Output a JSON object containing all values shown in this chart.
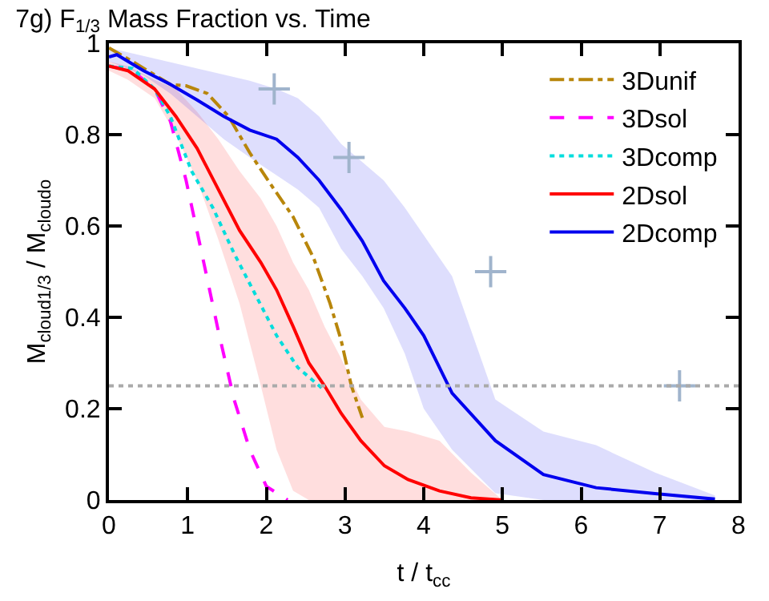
{
  "chart_data": {
    "type": "line",
    "title": "7g) F$_{1/3}$ Mass Fraction vs. Time",
    "xlabel": "t / t$_{cc}$",
    "ylabel": "M$_{cloud1/3}$ / M$_{cloudo}$",
    "xlim": [
      0,
      8
    ],
    "ylim": [
      0,
      1
    ],
    "xticks": [
      0,
      1,
      2,
      3,
      4,
      5,
      6,
      7,
      8
    ],
    "yticks": [
      0,
      0.2,
      0.4,
      0.6,
      0.8,
      1
    ],
    "legend": "top right",
    "ref_lines": [
      {
        "axis": "y",
        "value": 0.25,
        "label": null,
        "color": "#aaaaaa",
        "line_style": "dotted"
      }
    ],
    "series": [
      {
        "name": "3Dunif",
        "color": "#b8860b",
        "line_style": "dashdot",
        "x": [
          0,
          0.3,
          0.78,
          0.98,
          1.25,
          1.52,
          1.79,
          2.06,
          2.34,
          2.6,
          2.81,
          2.95,
          3.08,
          3.22
        ],
        "values": [
          0.99,
          0.96,
          0.91,
          0.907,
          0.89,
          0.84,
          0.76,
          0.69,
          0.62,
          0.53,
          0.43,
          0.35,
          0.25,
          0.18
        ]
      },
      {
        "name": "3Dsol",
        "color": "#ff00ff",
        "line_style": "dashed",
        "x": [
          0,
          0.3,
          0.58,
          0.78,
          0.98,
          1.18,
          1.39,
          1.59,
          1.79,
          2.0,
          2.27
        ],
        "values": [
          0.95,
          0.94,
          0.9,
          0.83,
          0.7,
          0.54,
          0.37,
          0.22,
          0.11,
          0.03,
          0.0
        ]
      },
      {
        "name": "3Dcomp",
        "color": "#00dddd",
        "line_style": "dotted",
        "x": [
          0,
          0.3,
          0.58,
          0.78,
          1.05,
          1.32,
          1.59,
          1.86,
          2.13,
          2.4,
          2.74
        ],
        "values": [
          0.95,
          0.945,
          0.9,
          0.84,
          0.72,
          0.64,
          0.54,
          0.45,
          0.36,
          0.29,
          0.24
        ]
      },
      {
        "name": "2Dsol",
        "color": "#ff0000",
        "line_style": "solid",
        "x": [
          0,
          0.24,
          0.58,
          0.85,
          1.12,
          1.39,
          1.66,
          1.93,
          2.13,
          2.34,
          2.54,
          2.74,
          2.95,
          3.2,
          3.5,
          3.8,
          4.2,
          4.6,
          5.0
        ],
        "values": [
          0.95,
          0.94,
          0.9,
          0.84,
          0.77,
          0.68,
          0.59,
          0.52,
          0.46,
          0.38,
          0.3,
          0.25,
          0.19,
          0.13,
          0.075,
          0.045,
          0.02,
          0.005,
          0.0
        ],
        "lower": [
          0.94,
          0.92,
          0.88,
          0.8,
          0.7,
          0.57,
          0.43,
          0.25,
          0.11,
          0.02,
          0,
          0,
          0,
          0,
          0,
          0,
          0,
          0,
          0
        ],
        "upper": [
          0.96,
          0.95,
          0.92,
          0.9,
          0.85,
          0.79,
          0.72,
          0.66,
          0.6,
          0.52,
          0.46,
          0.38,
          0.31,
          0.22,
          0.16,
          0.15,
          0.13,
          0.06,
          0.0
        ]
      },
      {
        "name": "2Dcomp",
        "color": "#0000ee",
        "line_style": "solid",
        "x": [
          0,
          0.1,
          0.44,
          0.78,
          1.12,
          1.46,
          1.79,
          2.13,
          2.4,
          2.67,
          2.95,
          3.22,
          3.49,
          3.76,
          4.0,
          4.36,
          4.91,
          5.52,
          6.19,
          6.94,
          7.7
        ],
        "values": [
          0.97,
          0.975,
          0.94,
          0.91,
          0.876,
          0.84,
          0.81,
          0.79,
          0.75,
          0.7,
          0.636,
          0.567,
          0.48,
          0.42,
          0.36,
          0.234,
          0.13,
          0.056,
          0.027,
          0.014,
          0.002
        ],
        "lower": [
          0.96,
          0.955,
          0.93,
          0.89,
          0.84,
          0.79,
          0.75,
          0.71,
          0.68,
          0.64,
          0.55,
          0.49,
          0.42,
          0.32,
          0.2,
          0.11,
          0.015,
          0,
          0,
          0,
          0
        ],
        "upper": [
          0.99,
          0.986,
          0.972,
          0.959,
          0.945,
          0.932,
          0.918,
          0.9,
          0.88,
          0.84,
          0.78,
          0.74,
          0.7,
          0.64,
          0.58,
          0.49,
          0.22,
          0.15,
          0.12,
          0.06,
          0.01
        ]
      },
      {
        "type": "scatter",
        "color": "#a0b4cc",
        "marker": "cross",
        "x": [
          2.1,
          3.05,
          4.85,
          7.25
        ],
        "values": [
          0.9,
          0.75,
          0.5,
          0.25
        ]
      }
    ]
  }
}
